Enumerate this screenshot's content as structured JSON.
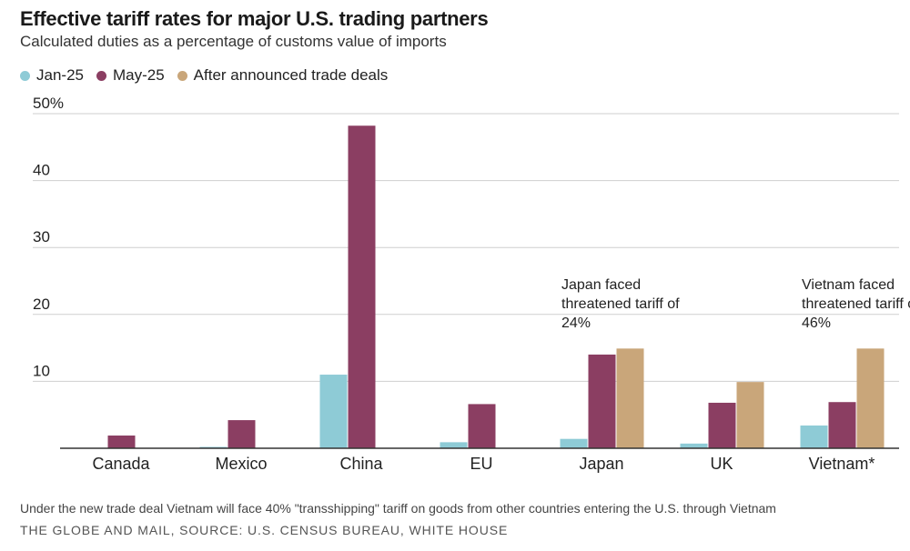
{
  "header": {
    "title": "Effective tariff rates for major U.S. trading partners",
    "subtitle": "Calculated duties as a percentage of customs value of imports"
  },
  "colors": {
    "jan": "#8ecbd6",
    "may": "#8b3e62",
    "deal": "#c9a67a",
    "grid": "#cfcfcf",
    "axis": "#333333"
  },
  "chart_data": {
    "type": "bar",
    "title": "Effective tariff rates for major U.S. trading partners",
    "ylabel": "",
    "xlabel": "",
    "ylim": [
      0,
      50
    ],
    "yticks": [
      {
        "value": 10,
        "label": "10"
      },
      {
        "value": 20,
        "label": "20"
      },
      {
        "value": 30,
        "label": "30"
      },
      {
        "value": 40,
        "label": "40"
      },
      {
        "value": 50,
        "label": "50%"
      }
    ],
    "grid": true,
    "legend_position": "top-left",
    "categories": [
      "Canada",
      "Mexico",
      "China",
      "EU",
      "Japan",
      "UK",
      "Vietnam*"
    ],
    "series": [
      {
        "name": "Jan-25",
        "color": "#8ecbd6",
        "values": [
          0.05,
          0.2,
          11,
          0.9,
          1.4,
          0.7,
          3.4
        ]
      },
      {
        "name": "May-25",
        "color": "#8b3e62",
        "values": [
          1.9,
          4.2,
          48.2,
          6.6,
          14.0,
          6.8,
          6.9
        ]
      },
      {
        "name": "After announced trade deals",
        "color": "#c9a67a",
        "values": [
          null,
          null,
          null,
          null,
          14.9,
          9.9,
          14.9
        ]
      }
    ],
    "annotations": [
      {
        "category": "Japan",
        "lines": [
          "Japan faced",
          "threatened tariff of",
          "24%"
        ]
      },
      {
        "category": "Vietnam*",
        "lines": [
          "Vietnam faced",
          "threatened tariff of",
          "46%"
        ]
      }
    ]
  },
  "footer": {
    "note": "Under the new trade deal Vietnam will face 40% \"transshipping\" tariff on goods from other countries entering the U.S. through Vietnam",
    "source": "THE GLOBE AND MAIL, SOURCE: U.S. CENSUS BUREAU, WHITE HOUSE"
  }
}
